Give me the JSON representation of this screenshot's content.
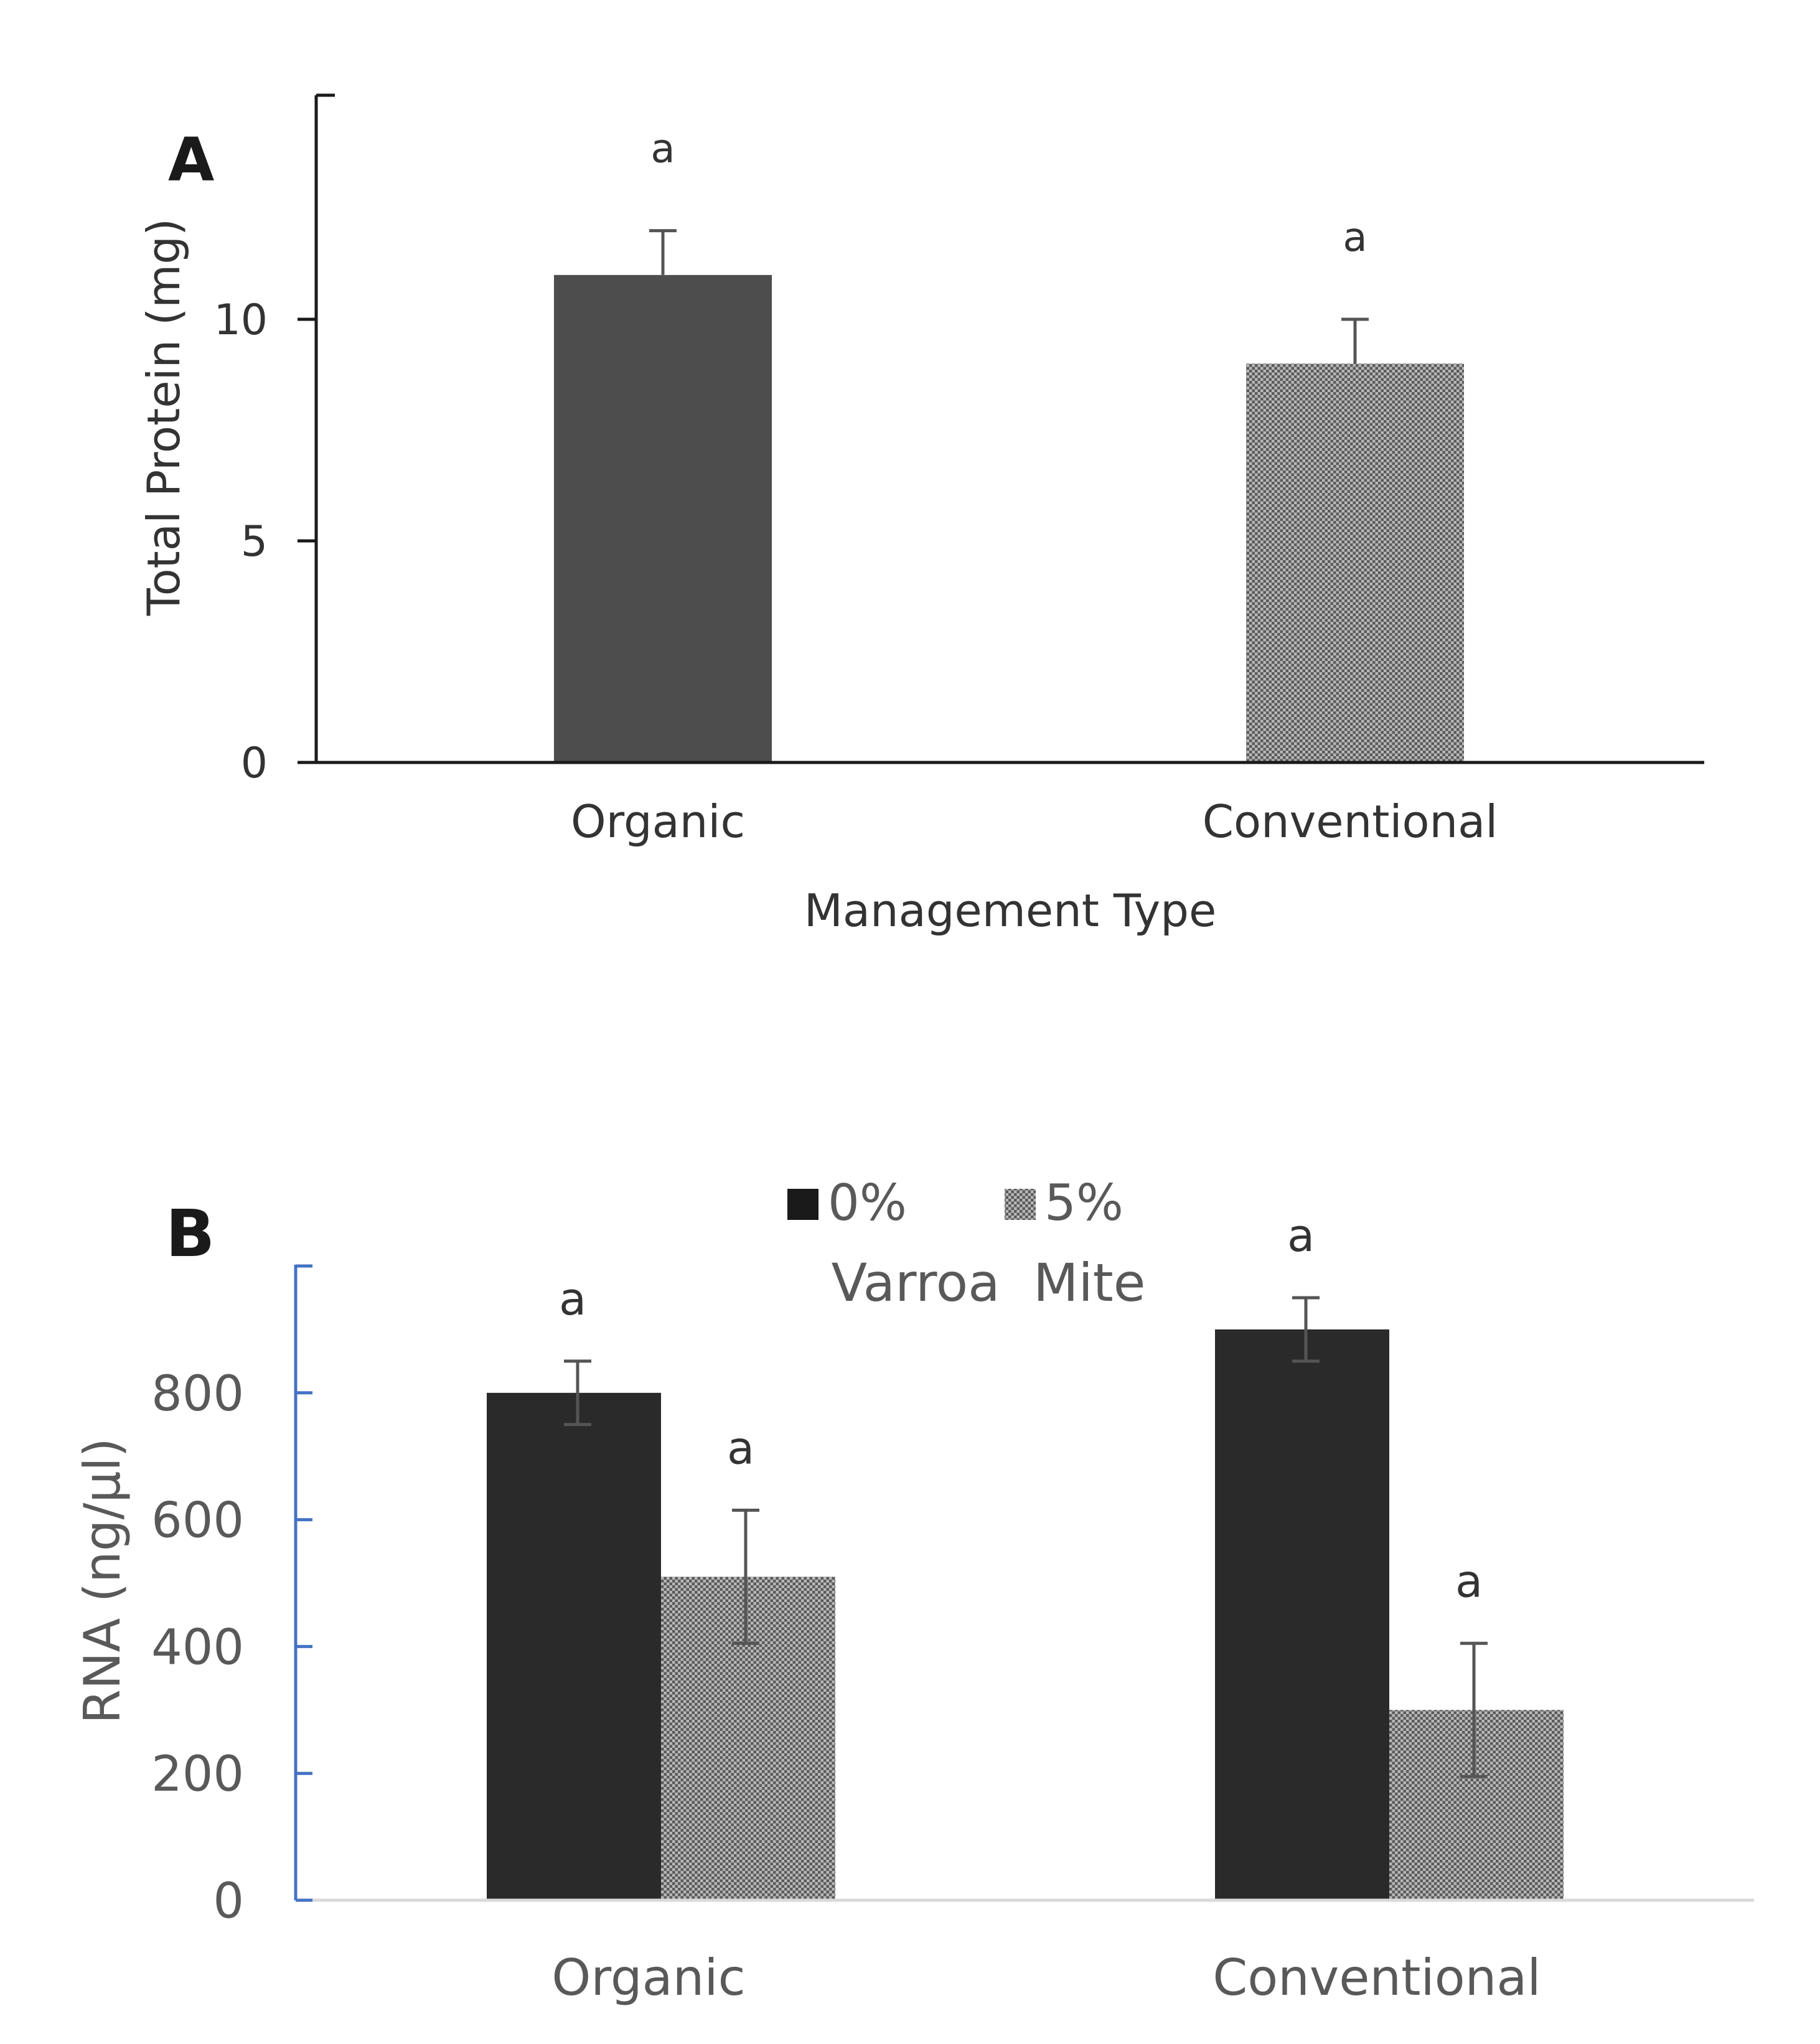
{
  "chart_data": [
    {
      "panel": "A",
      "type": "bar",
      "title": "",
      "xlabel": "Management Type",
      "ylabel": "Total Protein (mg)",
      "categories": [
        "Organic",
        "Conventional"
      ],
      "values": [
        11,
        9
      ],
      "errors": [
        1,
        1
      ],
      "significance": [
        "a",
        "a"
      ],
      "yticks": [
        0,
        5,
        10
      ],
      "ytick_labels": [
        "0",
        "5",
        "10"
      ],
      "ylim": [
        0,
        15
      ],
      "bar_fills": [
        "#4d4d4d",
        "pattern-dots"
      ],
      "grid": false
    },
    {
      "panel": "B",
      "type": "bar",
      "title": "",
      "xlabel": "",
      "ylabel": "RNA (ng/µl)",
      "categories": [
        "Organic",
        "Conventional"
      ],
      "series": [
        {
          "name": "0%",
          "values": [
            800,
            900
          ],
          "errors": [
            50,
            50
          ],
          "significance": [
            "a",
            "a"
          ],
          "color": "#2a2a2a"
        },
        {
          "name": "5%",
          "values": [
            510,
            300
          ],
          "errors": [
            105,
            105
          ],
          "significance": [
            "a",
            "a"
          ],
          "color": "pattern-dots"
        }
      ],
      "legend_title": "Varroa  Mite",
      "legend_position": "top-center",
      "yticks": [
        0,
        200,
        400,
        600,
        800
      ],
      "ytick_labels": [
        "0",
        "200",
        "400",
        "600",
        "800"
      ],
      "ylim": [
        0,
        1000
      ],
      "grid": false
    }
  ]
}
